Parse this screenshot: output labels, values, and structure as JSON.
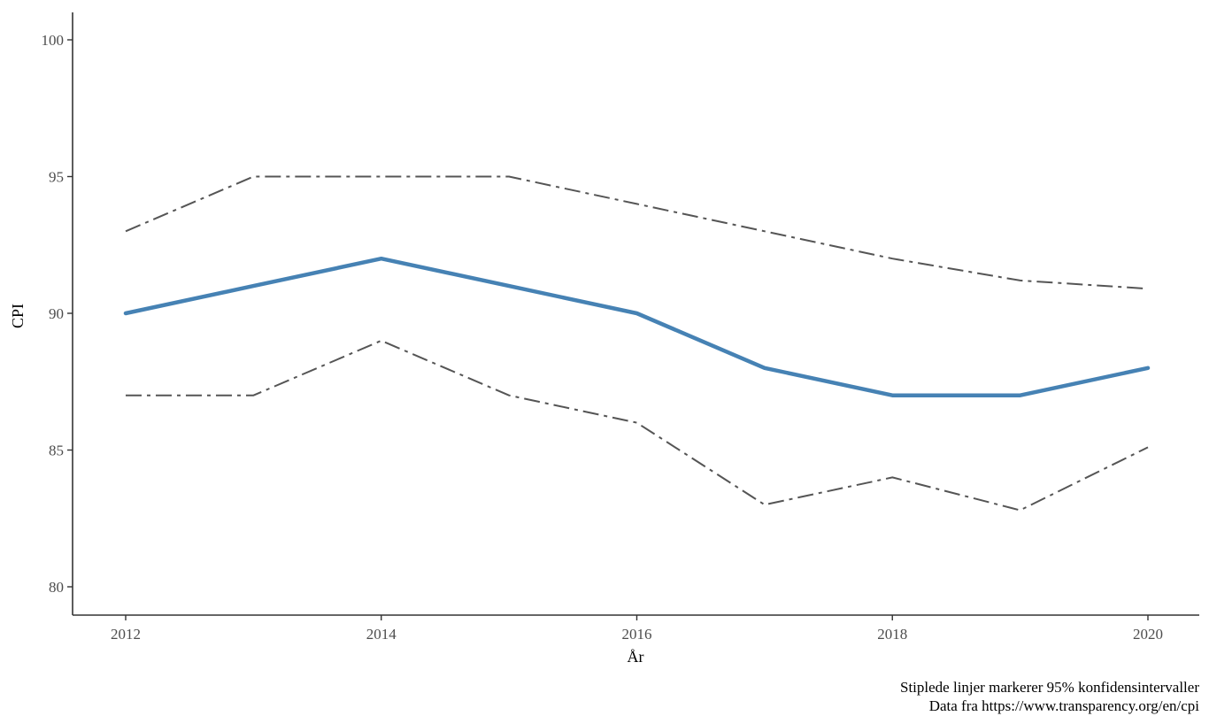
{
  "chart_data": {
    "type": "line",
    "title": "",
    "xlabel": "År",
    "ylabel": "CPI",
    "x": [
      2012,
      2013,
      2014,
      2015,
      2016,
      2017,
      2018,
      2019,
      2020
    ],
    "xticks": [
      "2012",
      "2014",
      "2016",
      "2018",
      "2020"
    ],
    "yticks": [
      "80",
      "85",
      "90",
      "95",
      "100"
    ],
    "xlim": [
      2011.8,
      2020.2
    ],
    "ylim": [
      79,
      101
    ],
    "grid": false,
    "series": [
      {
        "values": [
          90,
          91,
          92,
          91,
          90,
          88,
          87,
          87,
          88
        ],
        "color": "#4682b4",
        "style": "solid"
      },
      {
        "values": [
          93,
          95,
          95,
          95,
          94,
          93,
          92,
          91.2,
          90.9
        ],
        "color": "#555555",
        "style": "dashdot"
      },
      {
        "values": [
          87,
          87,
          89,
          87,
          86,
          83,
          84,
          82.8,
          85.1
        ],
        "color": "#555555",
        "style": "dashdot"
      }
    ],
    "caption": [
      "Stiplede linjer markerer 95% konfidensintervaller",
      "Data fra https://www.transparency.org/en/cpi"
    ]
  }
}
